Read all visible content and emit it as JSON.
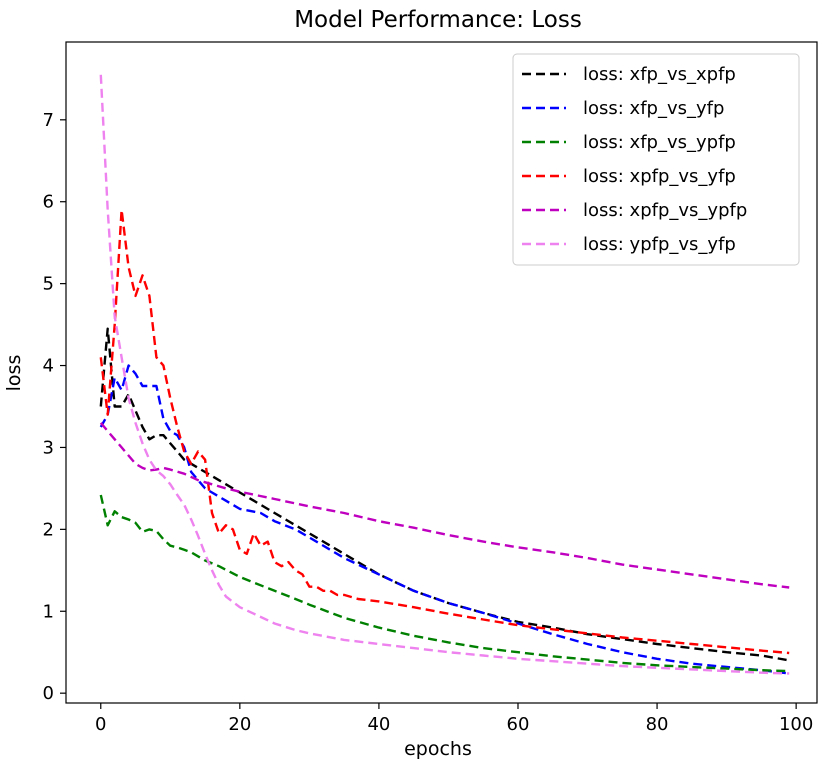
{
  "chart_data": {
    "type": "line",
    "title": "Model Performance: Loss",
    "xlabel": "epochs",
    "ylabel": "loss",
    "xlim": [
      -5,
      103
    ],
    "ylim": [
      -0.12,
      7.95
    ],
    "x_ticks": [
      0,
      20,
      40,
      60,
      80,
      100
    ],
    "y_ticks": [
      0,
      1,
      2,
      3,
      4,
      5,
      6,
      7
    ],
    "legend_position": "top-right",
    "grid": false,
    "series": [
      {
        "name": "loss: xfp_vs_xpfp",
        "color": "#000000",
        "x": [
          0,
          1,
          2,
          3,
          4,
          5,
          6,
          7,
          8,
          9,
          10,
          11,
          12,
          13,
          14,
          15,
          17,
          20,
          22,
          25,
          28,
          30,
          35,
          40,
          45,
          50,
          55,
          60,
          65,
          70,
          75,
          80,
          85,
          90,
          95,
          99
        ],
        "y": [
          3.5,
          4.45,
          3.5,
          3.5,
          3.65,
          3.45,
          3.25,
          3.1,
          3.15,
          3.15,
          3.05,
          2.95,
          2.85,
          2.8,
          2.75,
          2.7,
          2.6,
          2.45,
          2.35,
          2.2,
          2.05,
          1.95,
          1.7,
          1.45,
          1.25,
          1.1,
          0.98,
          0.87,
          0.8,
          0.72,
          0.66,
          0.6,
          0.55,
          0.5,
          0.46,
          0.4
        ]
      },
      {
        "name": "loss: xfp_vs_yfp",
        "color": "#0000ff",
        "x": [
          0,
          1,
          2,
          3,
          4,
          5,
          6,
          7,
          8,
          9,
          10,
          11,
          12,
          13,
          14,
          15,
          16,
          18,
          20,
          23,
          25,
          28,
          30,
          35,
          40,
          45,
          50,
          55,
          60,
          65,
          70,
          75,
          80,
          85,
          90,
          95,
          99
        ],
        "y": [
          3.25,
          3.4,
          3.85,
          3.7,
          4.0,
          3.9,
          3.75,
          3.75,
          3.75,
          3.35,
          3.2,
          3.15,
          3.0,
          2.7,
          2.6,
          2.5,
          2.45,
          2.35,
          2.25,
          2.2,
          2.1,
          2.0,
          1.9,
          1.65,
          1.45,
          1.25,
          1.1,
          0.98,
          0.85,
          0.72,
          0.6,
          0.5,
          0.42,
          0.36,
          0.32,
          0.28,
          0.24
        ]
      },
      {
        "name": "loss: xfp_vs_ypfp",
        "color": "#008000",
        "x": [
          0,
          1,
          2,
          3,
          4,
          5,
          6,
          7,
          8,
          9,
          10,
          11,
          12,
          13,
          15,
          17,
          20,
          22,
          25,
          28,
          30,
          35,
          40,
          45,
          50,
          55,
          60,
          65,
          70,
          75,
          80,
          85,
          90,
          95,
          99
        ],
        "y": [
          2.42,
          2.05,
          2.22,
          2.15,
          2.12,
          2.08,
          1.97,
          2.0,
          1.98,
          1.88,
          1.8,
          1.78,
          1.75,
          1.72,
          1.62,
          1.55,
          1.42,
          1.35,
          1.25,
          1.15,
          1.08,
          0.92,
          0.8,
          0.7,
          0.62,
          0.55,
          0.5,
          0.45,
          0.41,
          0.37,
          0.34,
          0.32,
          0.3,
          0.28,
          0.27
        ]
      },
      {
        "name": "loss: xpfp_vs_yfp",
        "color": "#ff0000",
        "x": [
          0,
          1,
          2,
          3,
          4,
          5,
          6,
          7,
          8,
          9,
          10,
          11,
          12,
          13,
          14,
          15,
          16,
          17,
          18,
          19,
          20,
          21,
          22,
          23,
          24,
          25,
          26,
          27,
          28,
          29,
          30,
          31,
          32,
          33,
          34,
          35,
          37,
          40,
          45,
          50,
          55,
          60,
          65,
          70,
          75,
          80,
          85,
          90,
          95,
          99
        ],
        "y": [
          4.1,
          3.4,
          4.5,
          5.9,
          5.2,
          4.85,
          5.1,
          4.85,
          4.1,
          4.0,
          3.6,
          3.25,
          2.95,
          2.8,
          2.95,
          2.85,
          2.2,
          1.95,
          2.05,
          2.0,
          1.75,
          1.7,
          1.95,
          1.8,
          1.85,
          1.6,
          1.55,
          1.6,
          1.5,
          1.45,
          1.3,
          1.3,
          1.25,
          1.25,
          1.2,
          1.2,
          1.15,
          1.12,
          1.05,
          0.97,
          0.9,
          0.83,
          0.78,
          0.73,
          0.68,
          0.64,
          0.6,
          0.56,
          0.52,
          0.49
        ]
      },
      {
        "name": "loss: xpfp_vs_ypfp",
        "color": "#bf00bf",
        "x": [
          0,
          1,
          2,
          3,
          4,
          5,
          6,
          7,
          8,
          9,
          10,
          12,
          14,
          16,
          18,
          20,
          25,
          30,
          35,
          40,
          45,
          50,
          55,
          60,
          65,
          70,
          75,
          80,
          85,
          90,
          95,
          99
        ],
        "y": [
          3.3,
          3.2,
          3.1,
          3.0,
          2.9,
          2.8,
          2.75,
          2.72,
          2.73,
          2.75,
          2.73,
          2.68,
          2.6,
          2.55,
          2.5,
          2.46,
          2.37,
          2.28,
          2.2,
          2.1,
          2.02,
          1.93,
          1.85,
          1.78,
          1.72,
          1.65,
          1.57,
          1.51,
          1.45,
          1.39,
          1.33,
          1.29
        ]
      },
      {
        "name": "loss: ypfp_vs_yfp",
        "color": "#ee82ee",
        "x": [
          0,
          1,
          2,
          3,
          4,
          5,
          6,
          7,
          8,
          9,
          10,
          11,
          12,
          13,
          14,
          15,
          16,
          17,
          18,
          20,
          22,
          25,
          28,
          30,
          35,
          40,
          45,
          50,
          55,
          60,
          65,
          70,
          75,
          80,
          85,
          90,
          95,
          99
        ],
        "y": [
          7.55,
          5.9,
          4.6,
          4.1,
          3.6,
          3.3,
          3.05,
          2.85,
          2.72,
          2.65,
          2.55,
          2.42,
          2.3,
          2.12,
          1.92,
          1.7,
          1.5,
          1.32,
          1.18,
          1.05,
          0.97,
          0.85,
          0.77,
          0.73,
          0.65,
          0.6,
          0.55,
          0.5,
          0.46,
          0.42,
          0.39,
          0.36,
          0.33,
          0.31,
          0.29,
          0.27,
          0.25,
          0.24
        ]
      }
    ]
  }
}
